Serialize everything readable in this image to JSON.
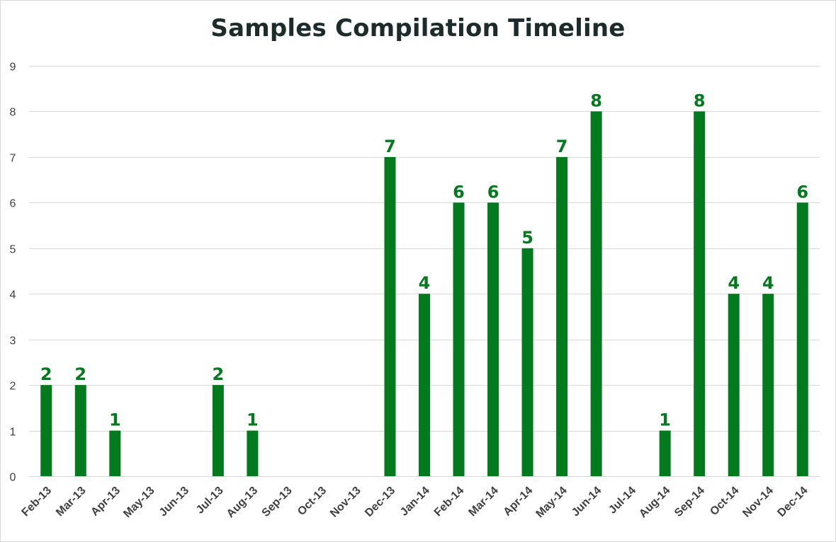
{
  "chart_data": {
    "type": "bar",
    "title": "Samples Compilation Timeline",
    "xlabel": "",
    "ylabel": "",
    "ylim": [
      0,
      9
    ],
    "yticks": [
      0,
      1,
      2,
      3,
      4,
      5,
      6,
      7,
      8,
      9
    ],
    "grid": true,
    "legend": "none",
    "bar_color": "#047a1e",
    "label_color": "#047a1e",
    "categories": [
      "Feb-13",
      "Mar-13",
      "Apr-13",
      "May-13",
      "Jun-13",
      "Jul-13",
      "Aug-13",
      "Sep-13",
      "Oct-13",
      "Nov-13",
      "Dec-13",
      "Jan-14",
      "Feb-14",
      "Mar-14",
      "Apr-14",
      "May-14",
      "Jun-14",
      "Jul-14",
      "Aug-14",
      "Sep-14",
      "Oct-14",
      "Nov-14",
      "Dec-14"
    ],
    "values": [
      2,
      2,
      1,
      null,
      null,
      2,
      1,
      null,
      null,
      null,
      7,
      4,
      6,
      6,
      5,
      7,
      8,
      null,
      1,
      8,
      4,
      4,
      6
    ]
  }
}
